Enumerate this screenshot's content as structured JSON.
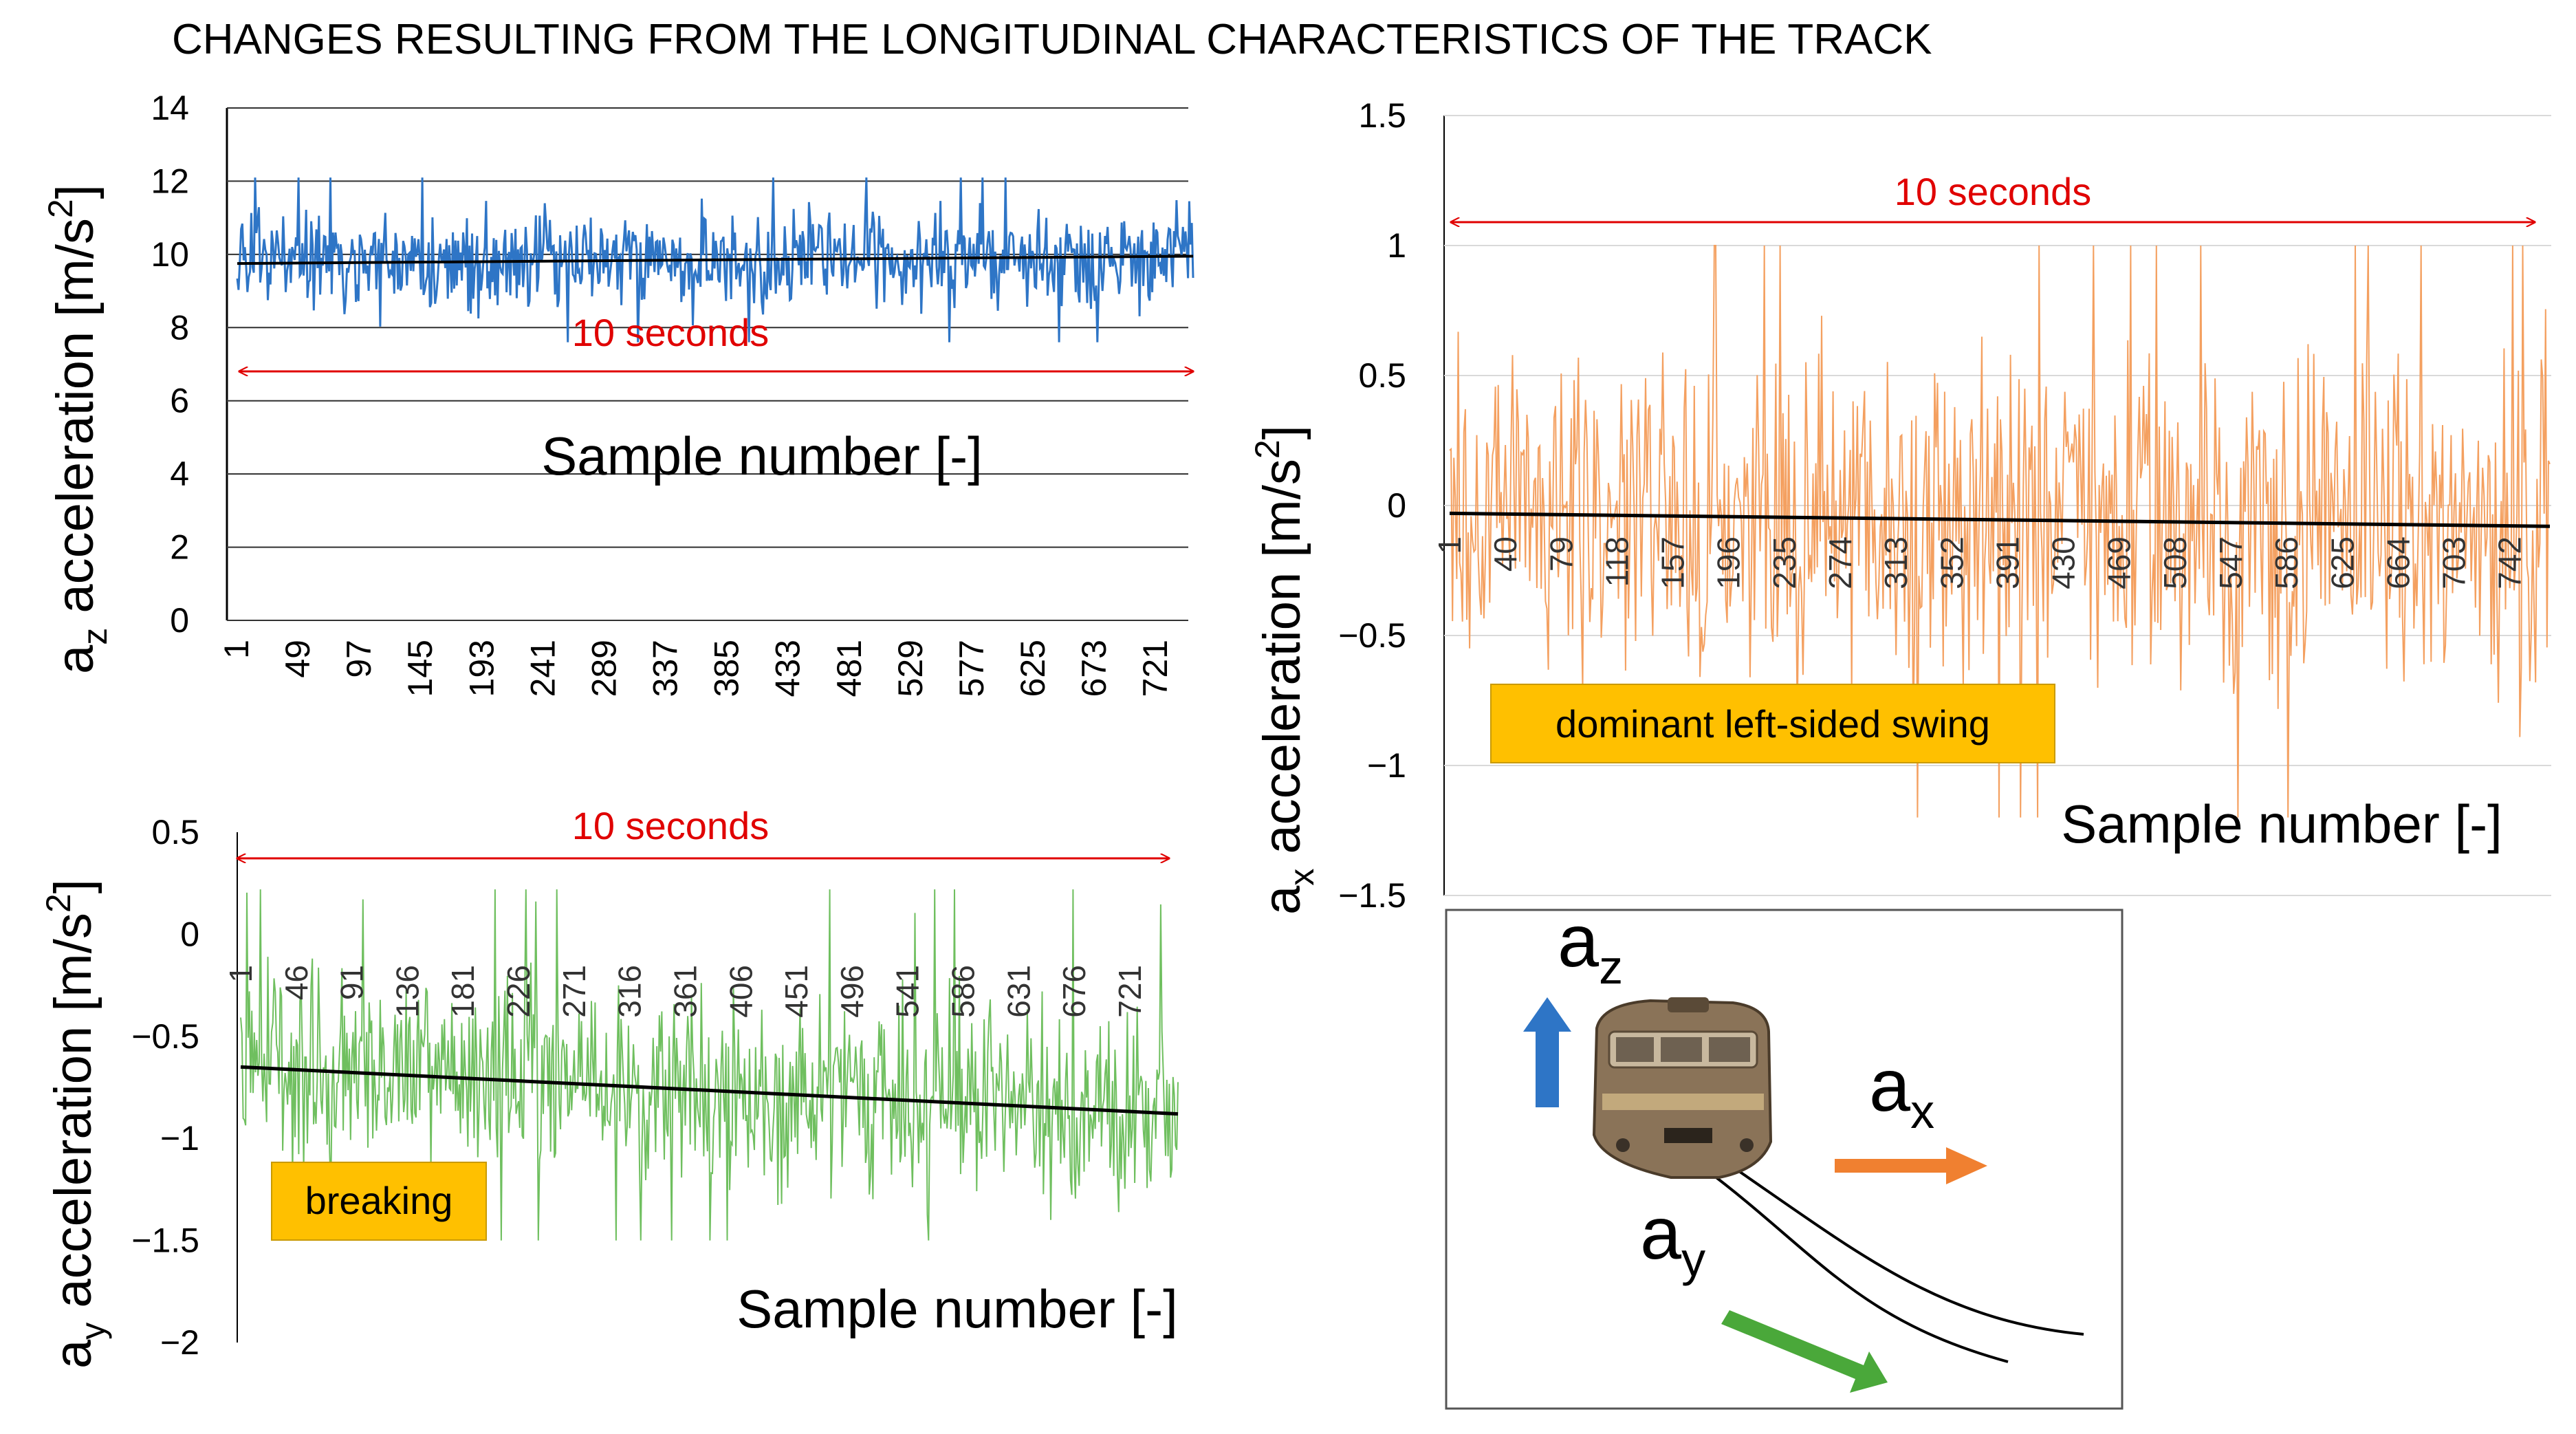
{
  "title": "CHANGES RESULTING FROM THE LONGITUDINAL CHARACTERISTICS OF THE TRACK",
  "colors": {
    "az": "#2e75c6",
    "ax": "#f4a060",
    "ay": "#6fbf5f",
    "note": "#e00000",
    "box": "#ffc000",
    "trend": "#000000"
  },
  "chart_data": [
    {
      "id": "az",
      "type": "line",
      "ylabel_main": "a",
      "ylabel_sub": "z",
      "ylabel_rest": " acceleration [m/s",
      "ylabel_sup": "2",
      "ylabel_end": "]",
      "xlabel": "Sample number [-]",
      "ylim": [
        0,
        14
      ],
      "yticks": [
        0,
        2,
        4,
        6,
        8,
        10,
        12,
        14
      ],
      "ytick_labels": [
        "0",
        "2",
        "4",
        "6",
        "8",
        "10",
        "12",
        "14"
      ],
      "xticks": [
        "1",
        "49",
        "97",
        "145",
        "193",
        "241",
        "289",
        "337",
        "385",
        "433",
        "481",
        "529",
        "577",
        "625",
        "673",
        "721"
      ],
      "n_samples": 750,
      "mean": 9.8,
      "range_observed": [
        7.6,
        12.1
      ],
      "trend": [
        9.75,
        9.95
      ],
      "annotation": "10 seconds",
      "grid": true
    },
    {
      "id": "ax",
      "type": "line",
      "ylabel_main": "a",
      "ylabel_sub": "x",
      "ylabel_rest": " acceleration [m/s",
      "ylabel_sup": "2",
      "ylabel_end": "]",
      "xlabel": "Sample number [-]",
      "ylim": [
        -1.5,
        1.5
      ],
      "yticks": [
        -1.5,
        -1,
        -0.5,
        0,
        0.5,
        1,
        1.5
      ],
      "ytick_labels": [
        "−1.5",
        "−1",
        "−0.5",
        "0",
        "0.5",
        "1",
        "1.5"
      ],
      "xticks": [
        "1",
        "40",
        "79",
        "118",
        "157",
        "196",
        "235",
        "274",
        "313",
        "352",
        "391",
        "430",
        "469",
        "508",
        "547",
        "586",
        "625",
        "664",
        "703",
        "742"
      ],
      "n_samples": 770,
      "mean": -0.04,
      "range_observed": [
        -1.2,
        1.0
      ],
      "trend": [
        -0.03,
        -0.08
      ],
      "annotation": "10 seconds",
      "callout": "dominant left-sided swing",
      "grid": true
    },
    {
      "id": "ay",
      "type": "line",
      "ylabel_main": "a",
      "ylabel_sub": "y",
      "ylabel_rest": " acceleration [m/s",
      "ylabel_sup": "2",
      "ylabel_end": "]",
      "xlabel": "Sample number [-]",
      "ylim": [
        -2,
        0.5
      ],
      "yticks": [
        -2,
        -1.5,
        -1,
        -0.5,
        0,
        0.5
      ],
      "ytick_labels": [
        "−2",
        "−1.5",
        "−1",
        "−0.5",
        "0",
        "0.5"
      ],
      "xticks": [
        "1",
        "46",
        "91",
        "136",
        "181",
        "226",
        "271",
        "316",
        "361",
        "406",
        "451",
        "496",
        "541",
        "586",
        "631",
        "676",
        "721"
      ],
      "n_samples": 760,
      "mean": -0.75,
      "range_observed": [
        -1.5,
        0.22
      ],
      "trend": [
        -0.65,
        -0.88
      ],
      "annotation": "10 seconds",
      "callout": "breaking",
      "grid": false
    }
  ],
  "diagram": {
    "labels": [
      {
        "main": "a",
        "sub": "z"
      },
      {
        "main": "a",
        "sub": "x"
      },
      {
        "main": "a",
        "sub": "y"
      }
    ],
    "arrow_colors": [
      "#2e75c6",
      "#f08030",
      "#4aa83a"
    ]
  }
}
